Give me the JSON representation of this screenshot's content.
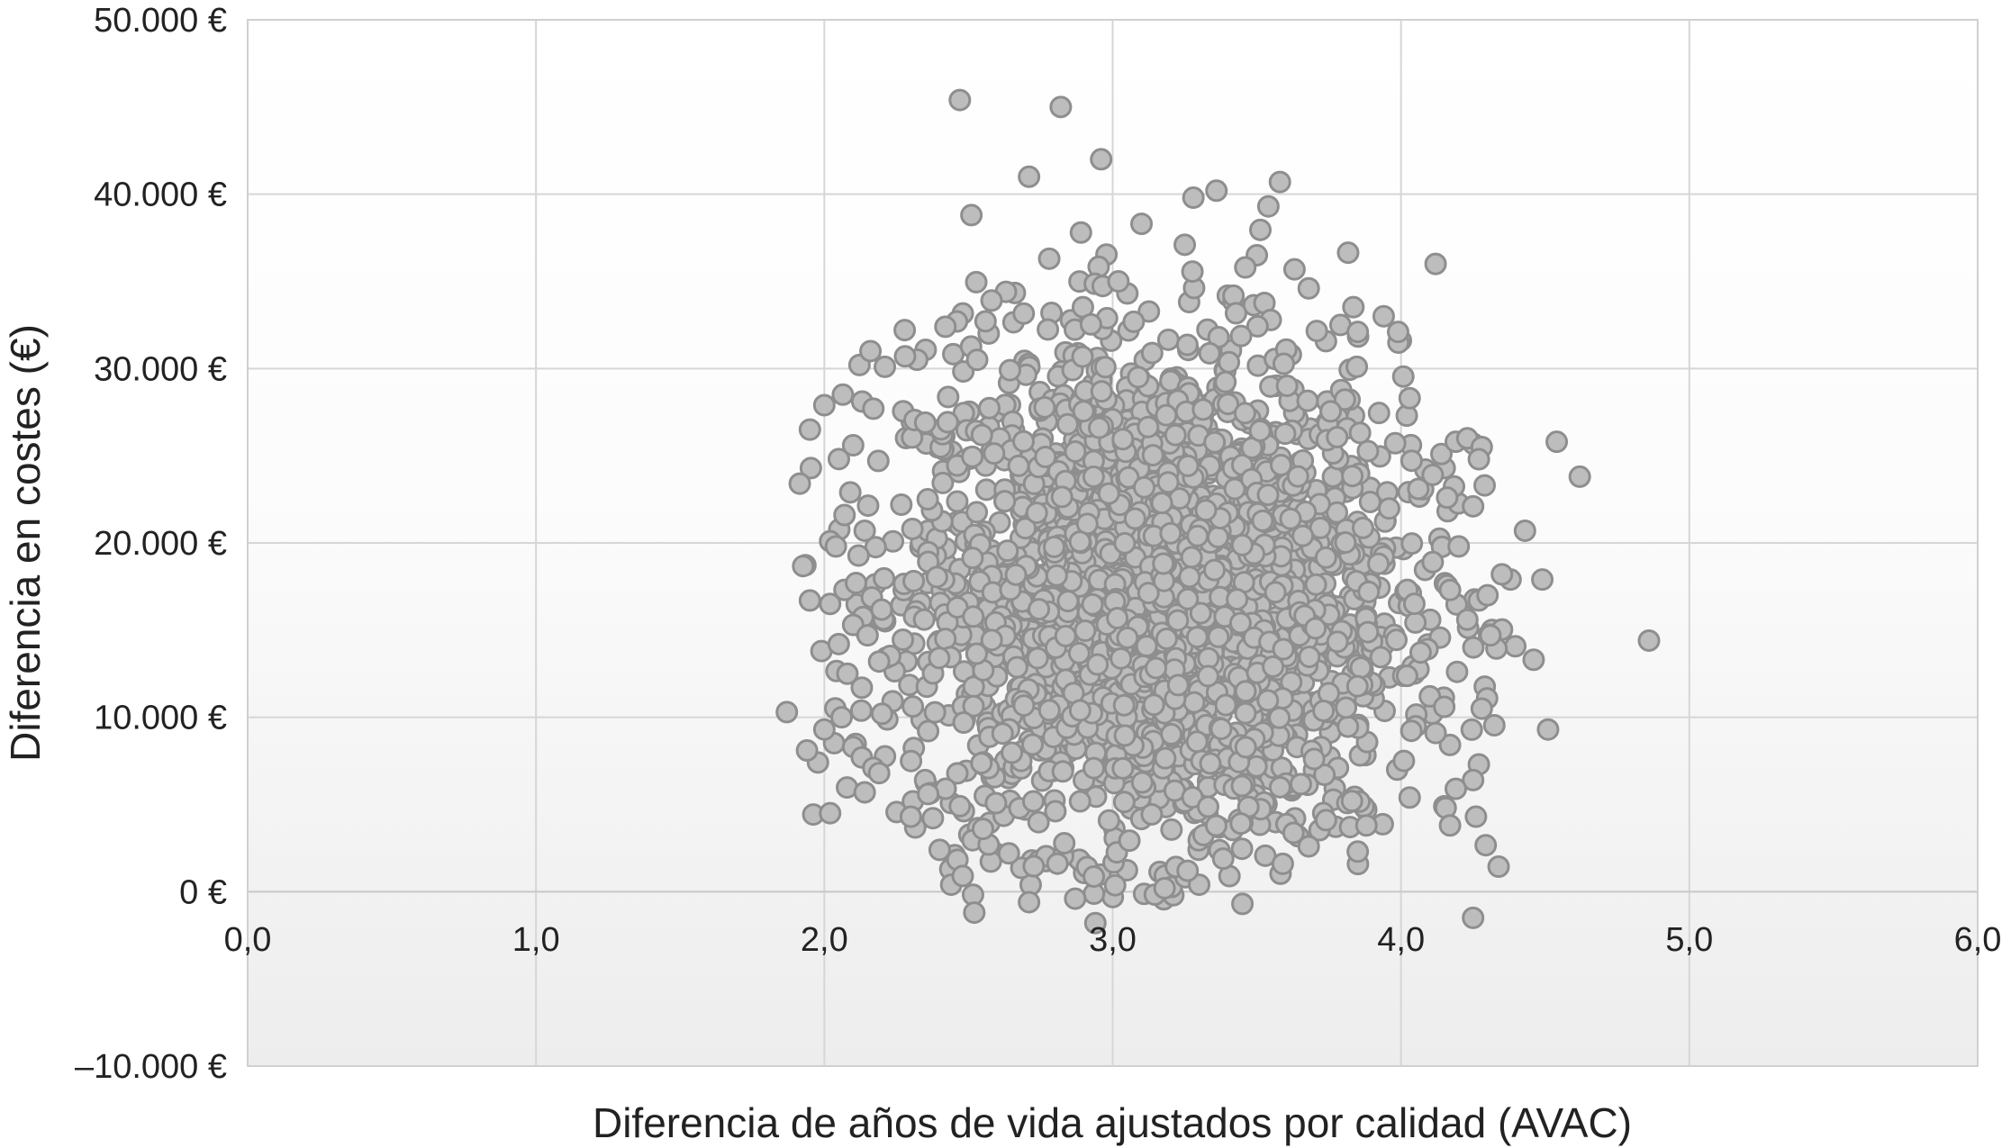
{
  "chart_data": {
    "type": "scatter",
    "title": "",
    "xlabel": "Diferencia de años de vida ajustados por calidad (AVAC)",
    "ylabel": "Diferencia en costes (€)",
    "xlim": [
      0,
      6
    ],
    "ylim": [
      -10000,
      50000
    ],
    "x_ticks": [
      "0,0",
      "1,0",
      "2,0",
      "3,0",
      "4,0",
      "5,0",
      "6,0"
    ],
    "y_ticks": [
      "–10.000 €",
      "0 €",
      "10.000 €",
      "20.000 €",
      "30.000 €",
      "40.000 €",
      "50.000 €"
    ],
    "grid": true,
    "legend": "none",
    "point_color": "#bdbdbd",
    "point_edge_color": "#8e8e8e",
    "series": [
      {
        "points": [
          [
            2.47,
            45400
          ],
          [
            2.82,
            45000
          ],
          [
            2.96,
            42000
          ],
          [
            2.71,
            41000
          ],
          [
            3.58,
            40700
          ],
          [
            3.36,
            40200
          ],
          [
            3.28,
            39800
          ],
          [
            3.54,
            39300
          ],
          [
            2.51,
            38800
          ],
          [
            3.1,
            38300
          ],
          [
            2.89,
            37800
          ],
          [
            3.25,
            37100
          ],
          [
            2.78,
            36300
          ],
          [
            4.12,
            36000
          ],
          [
            3.5,
            36500
          ],
          [
            3.46,
            35800
          ],
          [
            3.68,
            34600
          ],
          [
            3.02,
            35000
          ],
          [
            2.63,
            34400
          ],
          [
            2.58,
            33900
          ],
          [
            3.94,
            33000
          ],
          [
            3.79,
            32500
          ],
          [
            2.46,
            32700
          ],
          [
            2.42,
            32400
          ],
          [
            3.85,
            32100
          ],
          [
            2.16,
            31000
          ],
          [
            2.28,
            30700
          ],
          [
            2.21,
            30100
          ],
          [
            2.53,
            30500
          ],
          [
            3.99,
            32100
          ],
          [
            1.95,
            26500
          ],
          [
            2.0,
            27900
          ],
          [
            2.1,
            25600
          ],
          [
            2.17,
            27700
          ],
          [
            2.35,
            26900
          ],
          [
            4.02,
            27300
          ],
          [
            4.03,
            28300
          ],
          [
            4.14,
            25100
          ],
          [
            4.19,
            25800
          ],
          [
            4.23,
            26000
          ],
          [
            4.28,
            25500
          ],
          [
            4.54,
            25800
          ],
          [
            4.62,
            23800
          ],
          [
            4.06,
            23100
          ],
          [
            4.11,
            23900
          ],
          [
            4.27,
            24800
          ],
          [
            4.29,
            23300
          ],
          [
            4.25,
            22100
          ],
          [
            4.16,
            22600
          ],
          [
            2.09,
            22900
          ],
          [
            2.07,
            21600
          ],
          [
            2.14,
            20700
          ],
          [
            2.02,
            20100
          ],
          [
            2.04,
            19800
          ],
          [
            1.95,
            16700
          ],
          [
            2.02,
            16500
          ],
          [
            2.11,
            17700
          ],
          [
            1.99,
            13800
          ],
          [
            2.05,
            14200
          ],
          [
            2.1,
            15300
          ],
          [
            2.15,
            14700
          ],
          [
            2.19,
            13200
          ],
          [
            2.08,
            12500
          ],
          [
            2.13,
            11700
          ],
          [
            1.87,
            10300
          ],
          [
            2.0,
            9300
          ],
          [
            2.06,
            10000
          ],
          [
            2.1,
            8300
          ],
          [
            2.13,
            7700
          ],
          [
            1.94,
            8100
          ],
          [
            2.17,
            7100
          ],
          [
            2.19,
            6800
          ],
          [
            2.14,
            5700
          ],
          [
            2.02,
            4500
          ],
          [
            2.2,
            10200
          ],
          [
            4.38,
            17900
          ],
          [
            4.35,
            18200
          ],
          [
            4.27,
            16700
          ],
          [
            4.23,
            15600
          ],
          [
            4.31,
            14700
          ],
          [
            4.43,
            20700
          ],
          [
            4.49,
            17900
          ],
          [
            4.46,
            13300
          ],
          [
            4.51,
            9300
          ],
          [
            4.86,
            14400
          ],
          [
            4.2,
            19800
          ],
          [
            4.17,
            17300
          ],
          [
            4.11,
            18900
          ],
          [
            4.3,
            17000
          ],
          [
            4.28,
            10500
          ],
          [
            4.27,
            7300
          ],
          [
            4.25,
            6400
          ],
          [
            4.26,
            4300
          ],
          [
            4.17,
            3800
          ],
          [
            4.19,
            5900
          ],
          [
            4.12,
            9100
          ],
          [
            4.1,
            11200
          ],
          [
            4.15,
            10600
          ],
          [
            4.03,
            5400
          ],
          [
            4.01,
            7500
          ],
          [
            4.25,
            -1500
          ],
          [
            2.52,
            -1200
          ],
          [
            2.94,
            -1800
          ],
          [
            3.45,
            -700
          ],
          [
            2.71,
            -600
          ],
          [
            2.87,
            -400
          ],
          [
            2.44,
            400
          ],
          [
            2.48,
            900
          ],
          [
            3.18,
            200
          ],
          [
            3.3,
            400
          ],
          [
            2.4,
            2400
          ],
          [
            2.57,
            2700
          ],
          [
            2.64,
            2200
          ],
          [
            3.26,
            1200
          ],
          [
            3.59,
            1600
          ],
          [
            3.68,
            2600
          ],
          [
            3.85,
            2300
          ],
          [
            3.88,
            3800
          ],
          [
            3.74,
            4100
          ],
          [
            3.83,
            5200
          ],
          [
            2.3,
            4300
          ],
          [
            2.36,
            5600
          ],
          [
            2.47,
            4900
          ],
          [
            2.55,
            3600
          ]
        ]
      }
    ]
  }
}
